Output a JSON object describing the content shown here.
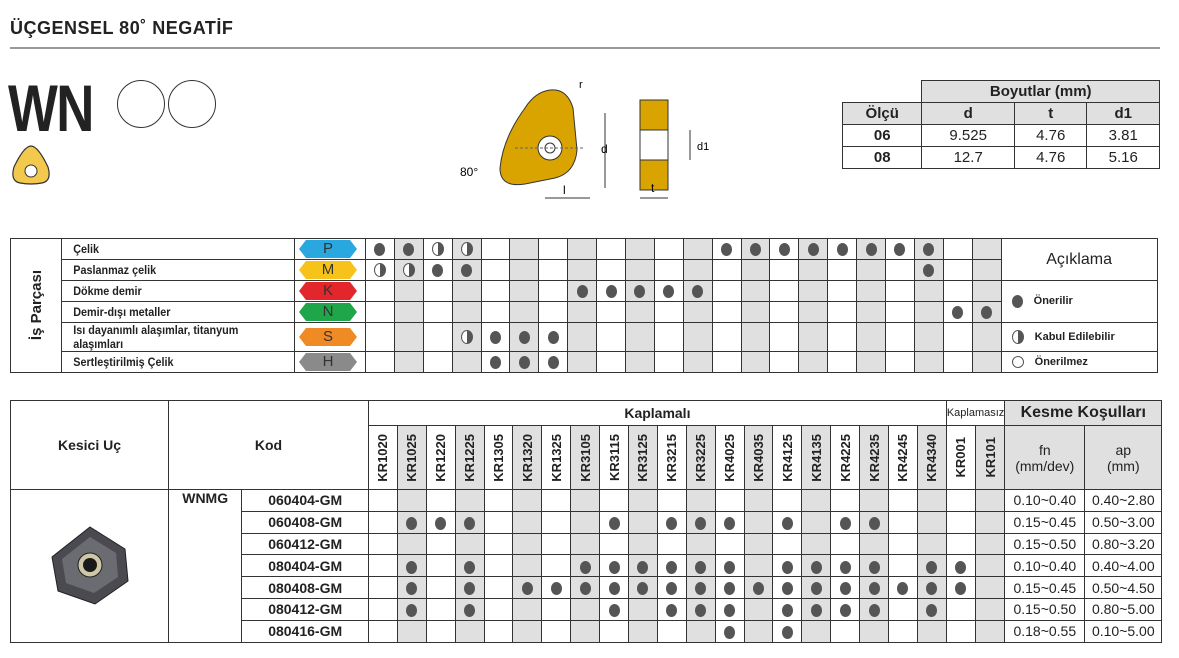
{
  "title": "ÜÇGENSEL 80˚ NEGATİF",
  "series_code": "WN",
  "diagram": {
    "labels": [
      "r",
      "d",
      "d1",
      "80°",
      "l",
      "t"
    ]
  },
  "dimensions": {
    "header": "Boyutlar (mm)",
    "columns": [
      "Ölçü",
      "d",
      "t",
      "d1"
    ],
    "rows": [
      [
        "06",
        "9.525",
        "4.76",
        "3.81"
      ],
      [
        "08",
        "12.7",
        "4.76",
        "5.16"
      ]
    ]
  },
  "workpiece": {
    "group_label": "İş Parçası",
    "legend_title": "Açıklama",
    "legend": [
      {
        "symbol": "full",
        "label": "Önerilir"
      },
      {
        "symbol": "half",
        "label": "Kabul Edilebilir"
      },
      {
        "symbol": "empty",
        "label": "Önerilmez"
      }
    ],
    "rows": [
      {
        "label": "Çelik",
        "iso": "P",
        "color": "#29a8e0",
        "marks": [
          "F",
          "F",
          "H",
          "H",
          "",
          "",
          "",
          "",
          "",
          "",
          "",
          "",
          "F",
          "F",
          "F",
          "F",
          "F",
          "F",
          "F",
          "F",
          "",
          ""
        ]
      },
      {
        "label": "Paslanmaz çelik",
        "iso": "M",
        "color": "#f7c31a",
        "marks": [
          "H",
          "H",
          "F",
          "F",
          "",
          "",
          "",
          "",
          "",
          "",
          "",
          "",
          "",
          "",
          "",
          "",
          "",
          "",
          "",
          "F",
          "",
          ""
        ]
      },
      {
        "label": "Dökme demir",
        "iso": "K",
        "color": "#e3262b",
        "marks": [
          "",
          "",
          "",
          "",
          "",
          "",
          "",
          "F",
          "F",
          "F",
          "F",
          "F",
          "",
          "",
          "",
          "",
          "",
          "",
          "",
          "",
          "",
          ""
        ]
      },
      {
        "label": "Demir-dışı metaller",
        "iso": "N",
        "color": "#1fa64a",
        "marks": [
          "",
          "",
          "",
          "",
          "",
          "",
          "",
          "",
          "",
          "",
          "",
          "",
          "",
          "",
          "",
          "",
          "",
          "",
          "",
          "",
          "F",
          "F"
        ]
      },
      {
        "label": "Isı dayanımlı alaşımlar, titanyum alaşımları",
        "iso": "S",
        "color": "#f08a24",
        "marks": [
          "",
          "",
          "",
          "H",
          "F",
          "F",
          "F",
          "",
          "",
          "",
          "",
          "",
          "",
          "",
          "",
          "",
          "",
          "",
          "",
          "",
          "",
          ""
        ]
      },
      {
        "label": "Sertleştirilmiş Çelik",
        "iso": "H",
        "color": "#8a8a8a",
        "marks": [
          "",
          "",
          "",
          "",
          "F",
          "F",
          "F",
          "",
          "",
          "",
          "",
          "",
          "",
          "",
          "",
          "",
          "",
          "",
          "",
          "",
          "",
          ""
        ]
      }
    ]
  },
  "table": {
    "col_insert": "Kesici Uç",
    "col_code": "Kod",
    "coated": "Kaplamalı",
    "uncoated": "Kaplamasız",
    "cutting": "Kesme Koşulları",
    "fn": "fn\n(mm/dev)",
    "ap": "ap\n(mm)",
    "family": "WNMG",
    "grades": [
      "KR1020",
      "KR1025",
      "KR1220",
      "KR1225",
      "KR1305",
      "KR1320",
      "KR1325",
      "KR3105",
      "KR3115",
      "KR3125",
      "KR3215",
      "KR3225",
      "KR4025",
      "KR4035",
      "KR4125",
      "KR4135",
      "KR4225",
      "KR4235",
      "KR4245",
      "KR4340",
      "KR001",
      "KR101"
    ],
    "rows": [
      {
        "code": "060404-GM",
        "fn": "0.10~0.40",
        "ap": "0.40~2.80",
        "dots": []
      },
      {
        "code": "060408-GM",
        "fn": "0.15~0.45",
        "ap": "0.50~3.00",
        "dots": [
          2,
          3,
          4,
          9,
          11,
          12,
          13,
          15,
          17,
          18
        ]
      },
      {
        "code": "060412-GM",
        "fn": "0.15~0.50",
        "ap": "0.80~3.20",
        "dots": []
      },
      {
        "code": "080404-GM",
        "fn": "0.10~0.40",
        "ap": "0.40~4.00",
        "dots": [
          2,
          4,
          8,
          9,
          10,
          11,
          12,
          13,
          15,
          16,
          17,
          18,
          20,
          21
        ]
      },
      {
        "code": "080408-GM",
        "fn": "0.15~0.45",
        "ap": "0.50~4.50",
        "dots": [
          2,
          4,
          6,
          7,
          8,
          9,
          10,
          11,
          12,
          13,
          14,
          15,
          16,
          17,
          18,
          19,
          20,
          21
        ]
      },
      {
        "code": "080412-GM",
        "fn": "0.15~0.50",
        "ap": "0.80~5.00",
        "dots": [
          2,
          4,
          9,
          11,
          12,
          13,
          15,
          16,
          17,
          18,
          20
        ]
      },
      {
        "code": "080416-GM",
        "fn": "0.18~0.55",
        "ap": "0.10~5.00",
        "dots": [
          13,
          15
        ]
      }
    ]
  }
}
